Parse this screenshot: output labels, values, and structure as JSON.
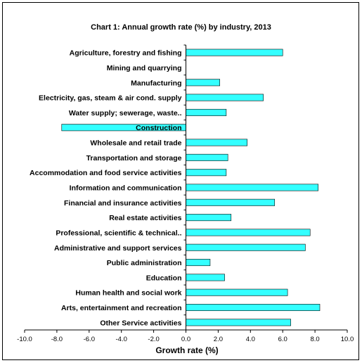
{
  "chart_data": {
    "type": "bar",
    "orientation": "horizontal",
    "title": "Chart 1: Annual growth rate (%) by industry, 2013",
    "xlabel": "Growth rate (%)",
    "ylabel": "",
    "xlim": [
      -10.0,
      10.0
    ],
    "xticks": [
      "-10.0",
      "-8.0",
      "-6.0",
      "-4.0",
      "-2.0",
      "0.0",
      "2.0",
      "4.0",
      "6.0",
      "8.0",
      "10.0"
    ],
    "bar_color": "#33ffff",
    "bar_edge_color": "#000000",
    "grid": false,
    "categories": [
      "Agriculture, forestry and fishing",
      "Mining and quarrying",
      "Manufacturing",
      "Electricity, gas, steam & air cond. supply",
      "Water supply; sewerage, waste..",
      "Construction",
      "Wholesale and retail trade",
      "Transportation and storage",
      "Accommodation and food service activities",
      "Information and communication",
      "Financial and insurance activities",
      "Real estate activities",
      "Professional, scientific & technical..",
      "Administrative and support services",
      "Public administration",
      "Education",
      "Human health and social work",
      "Arts, entertainment and recreation",
      "Other Service activities"
    ],
    "values": [
      6.0,
      0.0,
      2.1,
      4.8,
      2.5,
      -7.7,
      3.8,
      2.6,
      2.5,
      8.2,
      5.5,
      2.8,
      7.7,
      7.4,
      1.5,
      2.4,
      6.3,
      8.3,
      6.5
    ]
  }
}
